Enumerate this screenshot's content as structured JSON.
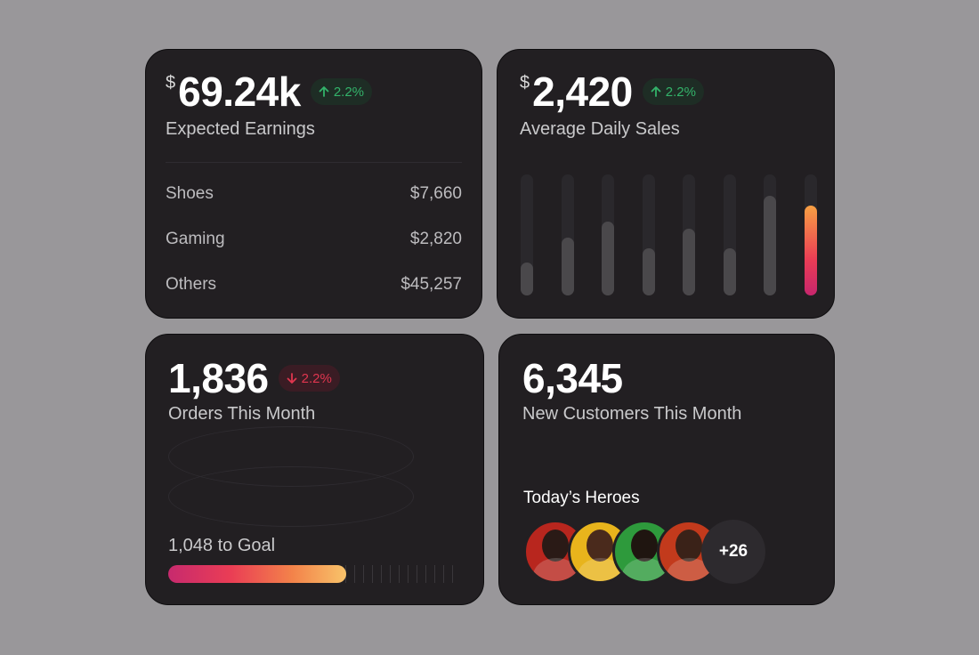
{
  "earnings": {
    "currency": "$",
    "value": "69.24k",
    "change": "2.2%",
    "change_direction": "up",
    "label": "Expected Earnings",
    "categories": [
      {
        "name": "Shoes",
        "amount": "$7,660"
      },
      {
        "name": "Gaming",
        "amount": "$2,820"
      },
      {
        "name": "Others",
        "amount": "$45,257"
      }
    ]
  },
  "sales": {
    "currency": "$",
    "value": "2,420",
    "change": "2.2%",
    "change_direction": "up",
    "label": "Average Daily Sales",
    "chart_data": {
      "type": "bar",
      "values": [
        0.27,
        0.48,
        0.61,
        0.39,
        0.55,
        0.39,
        0.82,
        0.74
      ],
      "highlighted_index": 7,
      "colors": {
        "bar": "#4a484b",
        "track": "#2a282c",
        "active_start": "#f8a043",
        "active_end": "#c7266d"
      }
    }
  },
  "orders": {
    "value": "1,836",
    "change": "2.2%",
    "change_direction": "down",
    "label": "Orders This Month",
    "goal_text": "1,048 to Goal",
    "goal_progress": 0.61
  },
  "customers": {
    "value": "6,345",
    "label": "New Customers This Month",
    "heroes_title": "Today’s Heroes",
    "more_count": "+26",
    "avatars": [
      {
        "bg": "#b8261e",
        "face": "#2a1a16"
      },
      {
        "bg": "#e8b41c",
        "face": "#4a2a1c"
      },
      {
        "bg": "#2e9a3c",
        "face": "#1f1510"
      },
      {
        "bg": "#c23a1c",
        "face": "#3a2218"
      }
    ]
  },
  "colors": {
    "up": "#33b36a",
    "down": "#e0364f",
    "card": "#221f22",
    "background": "#99979a"
  }
}
